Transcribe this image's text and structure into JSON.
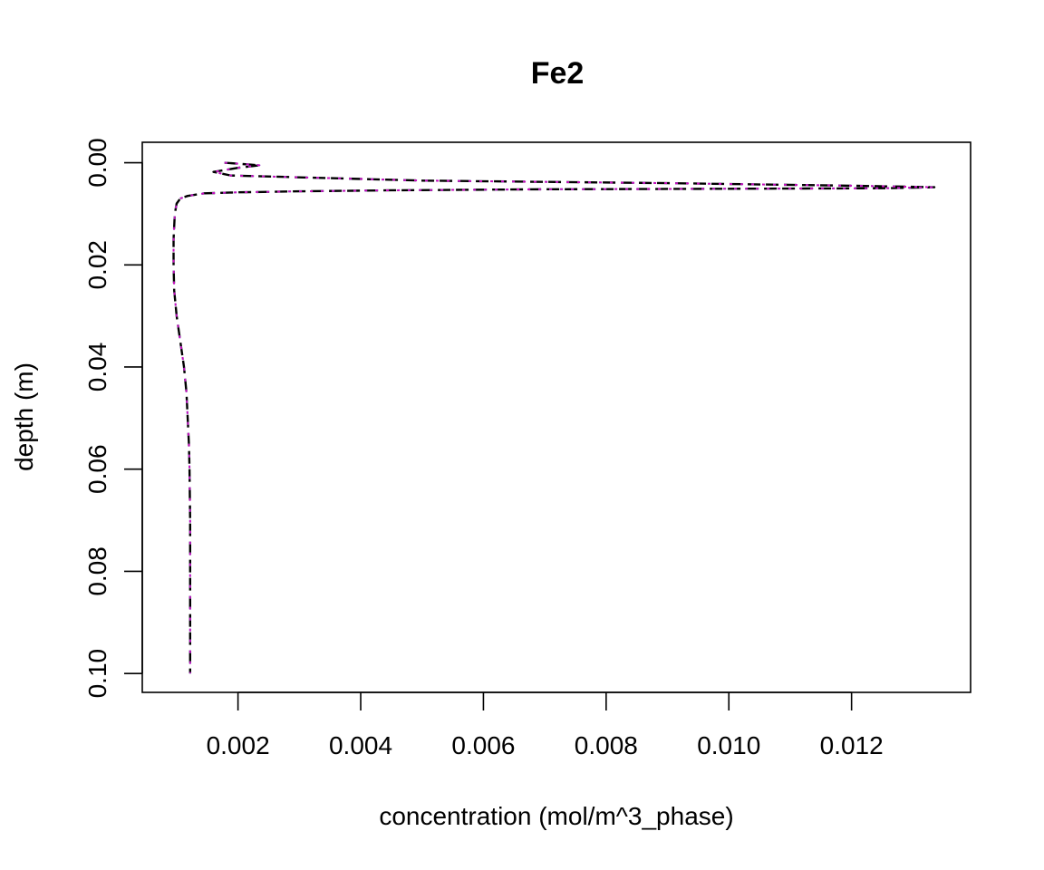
{
  "chart_data": {
    "type": "line",
    "title": "Fe2",
    "xlabel": "concentration (mol/m^3_phase)",
    "ylabel": "depth (m)",
    "xlim": [
      0.00044,
      0.01394
    ],
    "ylim": [
      0.1037,
      -0.004
    ],
    "y_reversed": true,
    "xticks": [
      "0.002",
      "0.004",
      "0.006",
      "0.008",
      "0.010",
      "0.012"
    ],
    "yticks": [
      "0.00",
      "0.02",
      "0.04",
      "0.06",
      "0.08",
      "0.10"
    ],
    "grid": false,
    "series": [
      {
        "color": "#000000",
        "dash": "dashed",
        "points": [
          [
            0.00178,
            0.0
          ],
          [
            0.00235,
            0.0005
          ],
          [
            0.002,
            0.001
          ],
          [
            0.0016,
            0.0018
          ],
          [
            0.00188,
            0.0025
          ],
          [
            0.005,
            0.0035
          ],
          [
            0.009,
            0.004
          ],
          [
            0.012,
            0.0045
          ],
          [
            0.01335,
            0.0048
          ],
          [
            0.0125,
            0.005
          ],
          [
            0.01,
            0.0051
          ],
          [
            0.007,
            0.0052
          ],
          [
            0.0045,
            0.0054
          ],
          [
            0.003,
            0.0056
          ],
          [
            0.002,
            0.0058
          ],
          [
            0.00145,
            0.006
          ],
          [
            0.00118,
            0.0065
          ],
          [
            0.00106,
            0.007
          ],
          [
            0.001,
            0.008
          ],
          [
            0.00097,
            0.01
          ],
          [
            0.00095,
            0.015
          ],
          [
            0.00095,
            0.02
          ],
          [
            0.00096,
            0.025
          ],
          [
            0.001,
            0.03
          ],
          [
            0.00106,
            0.035
          ],
          [
            0.00112,
            0.04
          ],
          [
            0.00116,
            0.045
          ],
          [
            0.00118,
            0.05
          ],
          [
            0.0012,
            0.055
          ],
          [
            0.00121,
            0.06
          ],
          [
            0.00122,
            0.07
          ],
          [
            0.00122,
            0.08
          ],
          [
            0.00122,
            0.09
          ],
          [
            0.00122,
            0.1
          ]
        ]
      },
      {
        "color": "#28e2e5",
        "dash": "dotted",
        "points": [
          [
            0.00178,
            0.0
          ],
          [
            0.00235,
            0.0005
          ],
          [
            0.002,
            0.001
          ],
          [
            0.0016,
            0.0018
          ],
          [
            0.00188,
            0.0025
          ],
          [
            0.005,
            0.0035
          ],
          [
            0.009,
            0.004
          ],
          [
            0.012,
            0.0045
          ],
          [
            0.01335,
            0.0048
          ],
          [
            0.0125,
            0.005
          ],
          [
            0.01,
            0.0051
          ],
          [
            0.007,
            0.0052
          ],
          [
            0.0045,
            0.0054
          ],
          [
            0.003,
            0.0056
          ],
          [
            0.002,
            0.0058
          ],
          [
            0.00145,
            0.006
          ],
          [
            0.00118,
            0.0065
          ],
          [
            0.00106,
            0.007
          ],
          [
            0.001,
            0.008
          ],
          [
            0.00097,
            0.01
          ],
          [
            0.00095,
            0.015
          ],
          [
            0.00095,
            0.02
          ],
          [
            0.00096,
            0.025
          ],
          [
            0.001,
            0.03
          ],
          [
            0.00106,
            0.035
          ],
          [
            0.00112,
            0.04
          ],
          [
            0.00116,
            0.045
          ],
          [
            0.00118,
            0.05
          ],
          [
            0.0012,
            0.055
          ],
          [
            0.00121,
            0.06
          ],
          [
            0.00122,
            0.07
          ],
          [
            0.00122,
            0.08
          ],
          [
            0.00122,
            0.09
          ],
          [
            0.00122,
            0.1
          ]
        ]
      },
      {
        "color": "#cd0bbc",
        "dash": "dotted",
        "points": [
          [
            0.00178,
            0.0
          ],
          [
            0.00235,
            0.0005
          ],
          [
            0.002,
            0.001
          ],
          [
            0.0016,
            0.0018
          ],
          [
            0.00188,
            0.0025
          ],
          [
            0.005,
            0.0035
          ],
          [
            0.009,
            0.004
          ],
          [
            0.012,
            0.0045
          ],
          [
            0.01335,
            0.0048
          ],
          [
            0.0125,
            0.005
          ],
          [
            0.01,
            0.0051
          ],
          [
            0.007,
            0.0052
          ],
          [
            0.0045,
            0.0054
          ],
          [
            0.003,
            0.0056
          ],
          [
            0.002,
            0.0058
          ],
          [
            0.00145,
            0.006
          ],
          [
            0.00118,
            0.0065
          ],
          [
            0.00106,
            0.007
          ],
          [
            0.001,
            0.008
          ],
          [
            0.00097,
            0.01
          ],
          [
            0.00095,
            0.015
          ],
          [
            0.00095,
            0.02
          ],
          [
            0.00096,
            0.025
          ],
          [
            0.001,
            0.03
          ],
          [
            0.00106,
            0.035
          ],
          [
            0.00112,
            0.04
          ],
          [
            0.00116,
            0.045
          ],
          [
            0.00118,
            0.05
          ],
          [
            0.0012,
            0.055
          ],
          [
            0.00121,
            0.06
          ],
          [
            0.00122,
            0.07
          ],
          [
            0.00122,
            0.08
          ],
          [
            0.00122,
            0.09
          ],
          [
            0.00122,
            0.1
          ]
        ]
      }
    ]
  }
}
